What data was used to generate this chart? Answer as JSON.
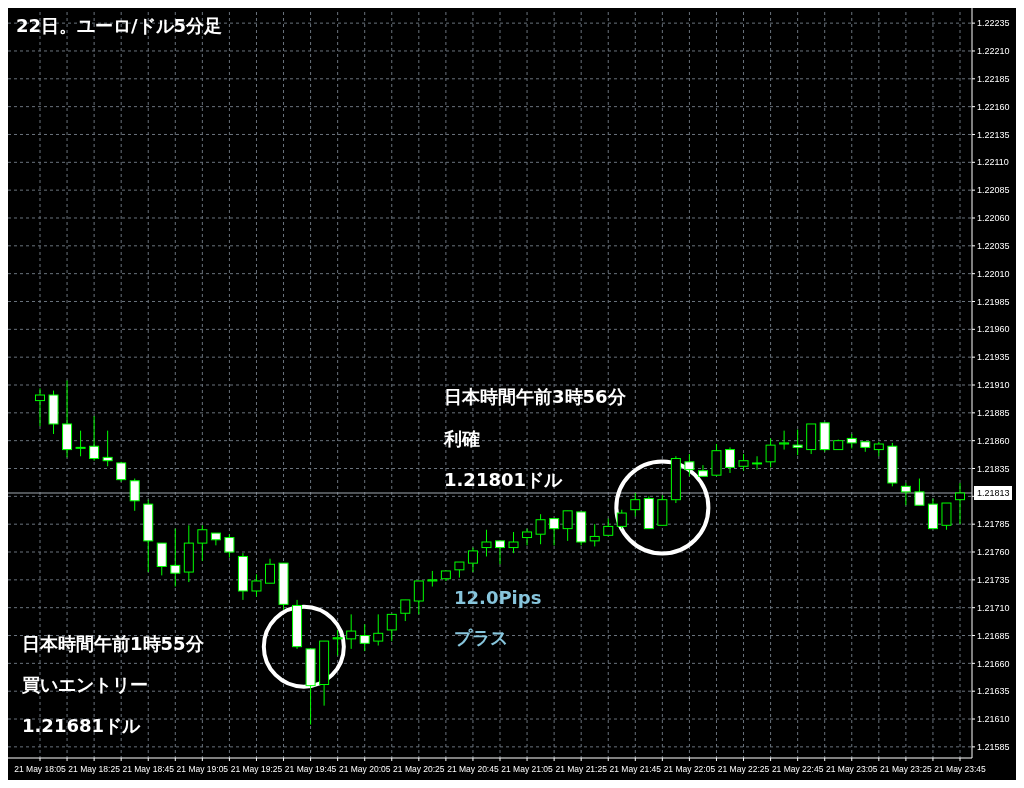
{
  "chart_data": {
    "type": "candlestick",
    "title": "22日。ユーロ/ドル5分足",
    "categories": [
      "21 May 18:05",
      null,
      null,
      null,
      "21 May 18:25",
      null,
      null,
      null,
      "21 May 18:45",
      null,
      null,
      null,
      "21 May 19:05",
      null,
      null,
      null,
      "21 May 19:25",
      null,
      null,
      null,
      "21 May 19:45",
      null,
      null,
      null,
      "21 May 20:05",
      null,
      null,
      null,
      "21 May 20:25",
      null,
      null,
      null,
      "21 May 20:45",
      null,
      null,
      null,
      "21 May 21:05",
      null,
      null,
      null,
      "21 May 21:25",
      null,
      null,
      null,
      "21 May 21:45",
      null,
      null,
      null,
      "21 May 22:05",
      null,
      null,
      null,
      "21 May 22:25",
      null,
      null,
      null,
      "21 May 22:45",
      null,
      null,
      null,
      "21 May 23:05",
      null,
      null,
      null,
      "21 May 23:25",
      null,
      null,
      null,
      "21 May 23:45"
    ],
    "ohlc": [
      [
        1.21896,
        1.21907,
        1.21873,
        1.21901
      ],
      [
        1.21901,
        1.21905,
        1.21866,
        1.21875
      ],
      [
        1.21875,
        1.21914,
        1.21845,
        1.21852
      ],
      [
        1.21854,
        1.21869,
        1.21846,
        1.21854
      ],
      [
        1.21855,
        1.21882,
        1.21842,
        1.21844
      ],
      [
        1.21845,
        1.21869,
        1.21837,
        1.21842
      ],
      [
        1.2184,
        1.21841,
        1.21823,
        1.21825
      ],
      [
        1.21824,
        1.21826,
        1.21797,
        1.21806
      ],
      [
        1.21803,
        1.21807,
        1.21742,
        1.2177
      ],
      [
        1.21768,
        1.21768,
        1.21739,
        1.21747
      ],
      [
        1.21748,
        1.21781,
        1.21729,
        1.21741
      ],
      [
        1.21742,
        1.21784,
        1.21733,
        1.21768
      ],
      [
        1.21768,
        1.21784,
        1.21752,
        1.2178
      ],
      [
        1.21777,
        1.21777,
        1.21766,
        1.21771
      ],
      [
        1.21773,
        1.21776,
        1.21755,
        1.2176
      ],
      [
        1.21756,
        1.21759,
        1.21717,
        1.21725
      ],
      [
        1.21725,
        1.2174,
        1.2172,
        1.21734
      ],
      [
        1.21732,
        1.21754,
        1.21732,
        1.21749
      ],
      [
        1.2175,
        1.2175,
        1.21708,
        1.21713
      ],
      [
        1.21712,
        1.21717,
        1.21673,
        1.21675
      ],
      [
        1.21673,
        1.21673,
        1.21605,
        1.2164
      ],
      [
        1.21641,
        1.2168,
        1.21622,
        1.2168
      ],
      [
        1.21682,
        1.2169,
        1.21667,
        1.21683
      ],
      [
        1.21682,
        1.21704,
        1.21673,
        1.21689
      ],
      [
        1.21685,
        1.21695,
        1.21671,
        1.21678
      ],
      [
        1.2168,
        1.21704,
        1.21676,
        1.21687
      ],
      [
        1.2169,
        1.21704,
        1.2168,
        1.21704
      ],
      [
        1.21705,
        1.21717,
        1.21698,
        1.21717
      ],
      [
        1.21716,
        1.21734,
        1.21704,
        1.21734
      ],
      [
        1.21734,
        1.21743,
        1.21729,
        1.21735
      ],
      [
        1.21736,
        1.21743,
        1.21734,
        1.21743
      ],
      [
        1.21744,
        1.21751,
        1.21737,
        1.21751
      ],
      [
        1.2175,
        1.21764,
        1.21742,
        1.21761
      ],
      [
        1.21764,
        1.2178,
        1.21756,
        1.21769
      ],
      [
        1.2177,
        1.2177,
        1.21749,
        1.21764
      ],
      [
        1.21764,
        1.21778,
        1.21759,
        1.21769
      ],
      [
        1.21773,
        1.21781,
        1.21766,
        1.21778
      ],
      [
        1.21776,
        1.21794,
        1.21767,
        1.21789
      ],
      [
        1.2179,
        1.2179,
        1.21766,
        1.21781
      ],
      [
        1.21781,
        1.21797,
        1.2177,
        1.21797
      ],
      [
        1.21796,
        1.21796,
        1.21766,
        1.21769
      ],
      [
        1.2177,
        1.21785,
        1.21765,
        1.21774
      ],
      [
        1.21775,
        1.2179,
        1.21775,
        1.21783
      ],
      [
        1.21783,
        1.21798,
        1.21781,
        1.21795
      ],
      [
        1.21798,
        1.21813,
        1.21792,
        1.21807
      ],
      [
        1.21808,
        1.2181,
        1.21781,
        1.21781
      ],
      [
        1.21784,
        1.21811,
        1.21784,
        1.21807
      ],
      [
        1.21807,
        1.21846,
        1.21804,
        1.21844
      ],
      [
        1.21841,
        1.21848,
        1.21828,
        1.21834
      ],
      [
        1.21833,
        1.21838,
        1.21828,
        1.21828
      ],
      [
        1.21829,
        1.21857,
        1.21828,
        1.21851
      ],
      [
        1.21852,
        1.21854,
        1.21831,
        1.21836
      ],
      [
        1.21837,
        1.21848,
        1.21833,
        1.21842
      ],
      [
        1.2184,
        1.21846,
        1.21834,
        1.2184
      ],
      [
        1.21841,
        1.21862,
        1.21836,
        1.21856
      ],
      [
        1.21857,
        1.21869,
        1.21852,
        1.21858
      ],
      [
        1.21856,
        1.2187,
        1.21847,
        1.21854
      ],
      [
        1.21852,
        1.21875,
        1.21848,
        1.21875
      ],
      [
        1.21876,
        1.21876,
        1.2185,
        1.21852
      ],
      [
        1.21852,
        1.21861,
        1.21852,
        1.2186
      ],
      [
        1.21862,
        1.21866,
        1.21853,
        1.21858
      ],
      [
        1.21859,
        1.21859,
        1.2185,
        1.21854
      ],
      [
        1.21852,
        1.21859,
        1.21846,
        1.21857
      ],
      [
        1.21855,
        1.21858,
        1.21819,
        1.21822
      ],
      [
        1.21819,
        1.21822,
        1.21802,
        1.21814
      ],
      [
        1.21814,
        1.21826,
        1.21802,
        1.21802
      ],
      [
        1.21803,
        1.21808,
        1.21781,
        1.21781
      ],
      [
        1.21784,
        1.21804,
        1.2178,
        1.21804
      ],
      [
        1.21807,
        1.21822,
        1.21785,
        1.21813
      ]
    ],
    "color": "#00ff00",
    "ylim": [
      1.21575,
      1.22245
    ],
    "yticks": [
      1.21585,
      {
        "value": 1.2161,
        "label": "1.21610"
      },
      1.21635,
      {
        "value": 1.2166,
        "label": "1.21660"
      },
      1.21685,
      {
        "value": 1.2171,
        "label": "1.21710"
      },
      1.21735,
      {
        "value": 1.2176,
        "label": "1.21760"
      },
      1.21785,
      {
        "value": 1.2181,
        "label": null
      },
      1.21835,
      {
        "value": 1.2186,
        "label": "1.21860"
      },
      1.21885,
      {
        "value": 1.2191,
        "label": "1.21910"
      },
      1.21935,
      {
        "value": 1.2196,
        "label": "1.21960"
      },
      1.21985,
      {
        "value": 1.2201,
        "label": "1.22010"
      },
      1.22035,
      {
        "value": 1.2206,
        "label": "1.22060"
      },
      1.22085,
      {
        "value": 1.2211,
        "label": "1.22110"
      },
      1.22135,
      {
        "value": 1.2216,
        "label": "1.22160"
      },
      1.22185,
      {
        "value": 1.2221,
        "label": "1.22210"
      },
      1.22235
    ],
    "grid": true,
    "ref_lines": [
      {
        "axis": "y",
        "value": 1.21813,
        "label": "1.21813",
        "color": "#a0a8b0"
      }
    ],
    "annotations": [
      "日本時間午前1時55分",
      "買いエントリー",
      "1.21681ドル",
      "日本時間午前3時56分",
      "利確",
      "1.21801ドル",
      "12.0Pips",
      "プラス"
    ]
  }
}
